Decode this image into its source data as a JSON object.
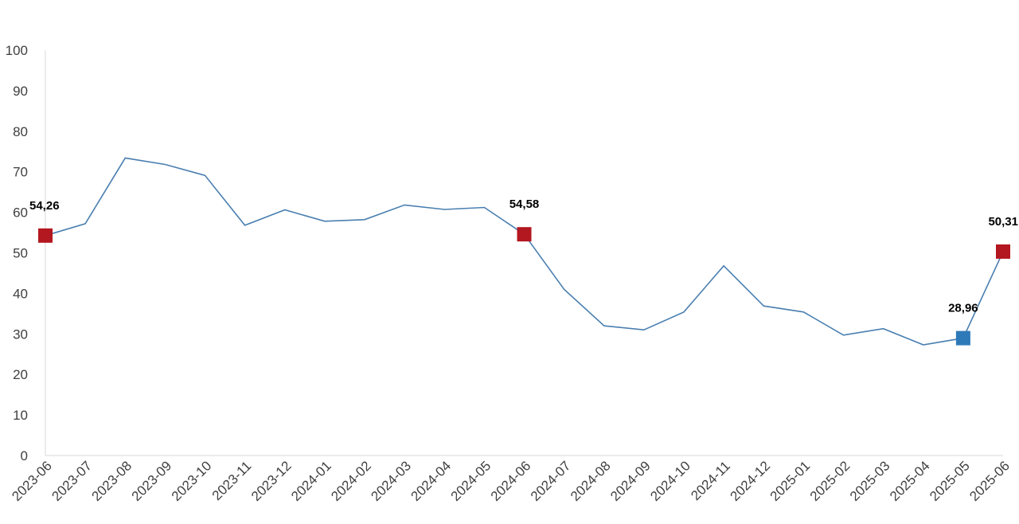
{
  "chart_data": {
    "type": "line",
    "title": "",
    "xlabel": "",
    "ylabel": "",
    "ylim": [
      0,
      100
    ],
    "yticks": [
      "0",
      "10",
      "20",
      "30",
      "40",
      "50",
      "60",
      "70",
      "80",
      "90",
      "100"
    ],
    "grid": false,
    "categories": [
      "2023-06",
      "2023-07",
      "2023-08",
      "2023-09",
      "2023-10",
      "2023-11",
      "2023-12",
      "2024-01",
      "2024-02",
      "2024-03",
      "2024-04",
      "2024-05",
      "2024-06",
      "2024-07",
      "2024-08",
      "2024-09",
      "2024-10",
      "2024-11",
      "2024-12",
      "2025-01",
      "2025-02",
      "2025-03",
      "2025-04",
      "2025-05",
      "2025-06"
    ],
    "series": [
      {
        "values": [
          54.26,
          57.2,
          73.4,
          71.8,
          69.1,
          56.8,
          60.6,
          57.8,
          58.2,
          61.8,
          60.7,
          61.2,
          54.58,
          41.0,
          32.0,
          31.0,
          35.4,
          46.8,
          36.9,
          35.4,
          29.7,
          31.3,
          27.3,
          28.96,
          50.31
        ],
        "color": "#4a7fb0"
      }
    ],
    "highlights": [
      {
        "index": 0,
        "label": "54,26",
        "color": "#b3171f"
      },
      {
        "index": 12,
        "label": "54,58",
        "color": "#b3171f"
      },
      {
        "index": 23,
        "label": "28,96",
        "color": "#2e7ab8"
      },
      {
        "index": 24,
        "label": "50,31",
        "color": "#b3171f"
      }
    ]
  }
}
